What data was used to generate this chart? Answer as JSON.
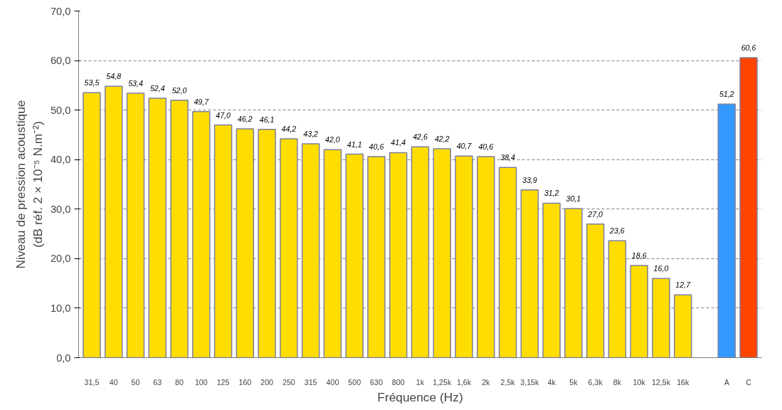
{
  "chart_data": {
    "type": "bar",
    "xlabel": "Fréquence (Hz)",
    "ylabel": "Niveau de pression acoustique\n(dB réf. 2 × 10⁻⁵ N.m⁻²)",
    "categories": [
      "31,5",
      "40",
      "50",
      "63",
      "80",
      "100",
      "125",
      "160",
      "200",
      "250",
      "315",
      "400",
      "500",
      "630",
      "800",
      "1k",
      "1,25k",
      "1,6k",
      "2k",
      "2,5k",
      "3,15k",
      "4k",
      "5k",
      "6,3k",
      "8k",
      "10k",
      "12,5k",
      "16k",
      null,
      "A",
      "C"
    ],
    "values": [
      53.5,
      54.8,
      53.4,
      52.4,
      52.0,
      49.7,
      47.0,
      46.2,
      46.1,
      44.2,
      43.2,
      42.0,
      41.1,
      40.6,
      41.4,
      42.6,
      42.2,
      40.7,
      40.6,
      38.4,
      33.9,
      31.2,
      30.1,
      27.0,
      23.6,
      18.6,
      16.0,
      12.7,
      null,
      51.2,
      60.6
    ],
    "value_labels": [
      "53,5",
      "54,8",
      "53,4",
      "52,4",
      "52,0",
      "49,7",
      "47,0",
      "46,2",
      "46,1",
      "44,2",
      "43,2",
      "42,0",
      "41,1",
      "40,6",
      "41,4",
      "42,6",
      "42,2",
      "40,7",
      "40,6",
      "38,4",
      "33,9",
      "31,2",
      "30,1",
      "27,0",
      "23,6",
      "18,6",
      "16,0",
      "12,7",
      null,
      "51,2",
      "60,6"
    ],
    "colors": [
      "#ffdd00",
      "#ffdd00",
      "#ffdd00",
      "#ffdd00",
      "#ffdd00",
      "#ffdd00",
      "#ffdd00",
      "#ffdd00",
      "#ffdd00",
      "#ffdd00",
      "#ffdd00",
      "#ffdd00",
      "#ffdd00",
      "#ffdd00",
      "#ffdd00",
      "#ffdd00",
      "#ffdd00",
      "#ffdd00",
      "#ffdd00",
      "#ffdd00",
      "#ffdd00",
      "#ffdd00",
      "#ffdd00",
      "#ffdd00",
      "#ffdd00",
      "#ffdd00",
      "#ffdd00",
      "#ffdd00",
      null,
      "#3399ff",
      "#ff4400"
    ],
    "ylim": [
      0,
      70
    ],
    "yticks": [
      {
        "value": 0,
        "label": "0,0"
      },
      {
        "value": 10,
        "label": "10,0"
      },
      {
        "value": 20,
        "label": "20,0"
      },
      {
        "value": 30,
        "label": "30,0"
      },
      {
        "value": 40,
        "label": "40,0"
      },
      {
        "value": 50,
        "label": "50,0"
      },
      {
        "value": 60,
        "label": "60,0"
      },
      {
        "value": 70,
        "label": "70,0"
      }
    ],
    "grid": "y"
  }
}
